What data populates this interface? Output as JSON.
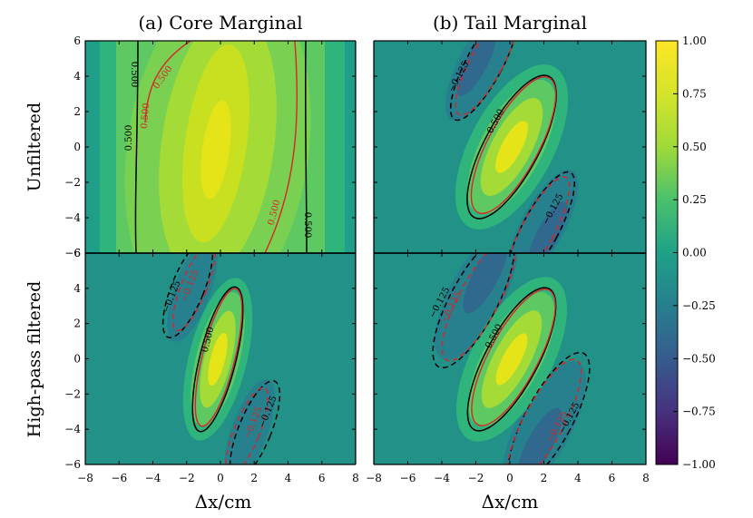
{
  "chart_data": {
    "type": "heatmap",
    "subtype": "filled contour grid (2x2) with contour lines",
    "columns": [
      {
        "key": "core",
        "title": "(a) Core Marginal"
      },
      {
        "key": "tail",
        "title": "(b) Tail Marginal"
      }
    ],
    "rows": [
      {
        "key": "unfiltered",
        "label": "Unfiltered"
      },
      {
        "key": "highpass",
        "label": "High-pass filtered"
      }
    ],
    "xlabel": "Δx/cm",
    "xlim": [
      -8,
      8
    ],
    "xticks": [
      "−8",
      "−6",
      "−4",
      "−2",
      "0",
      "2",
      "4",
      "6",
      "8"
    ],
    "ylim": [
      -6,
      6
    ],
    "yticks": [
      "−6",
      "−4",
      "−2",
      "0",
      "2",
      "4",
      "6"
    ],
    "colorbar": {
      "colormap": "viridis",
      "range": [
        -1.0,
        1.0
      ],
      "ticks": [
        "1.00",
        "0.75",
        "0.50",
        "0.25",
        "0.00",
        "−0.25",
        "−0.50",
        "−0.75",
        "−1.00"
      ],
      "levels": 20
    },
    "panels": [
      {
        "column": "core",
        "row": "unfiltered",
        "description": "broad near-vertical positive correlation band centred at x=0",
        "contour_lines": [
          {
            "level": 0.5,
            "color": "black",
            "style": "solid",
            "labels": [
              "0.500",
              "0.500",
              "0.500"
            ]
          },
          {
            "level": 0.5,
            "color": "red",
            "style": "solid",
            "labels": [
              "0.500",
              "0.500",
              "0.500"
            ]
          }
        ]
      },
      {
        "column": "tail",
        "row": "unfiltered",
        "description": "tilted positive ellipse flanked by negative lobes",
        "contour_lines": [
          {
            "level": 0.5,
            "color": "black",
            "style": "solid",
            "labels": [
              "0.500"
            ]
          },
          {
            "level": 0.5,
            "color": "red",
            "style": "solid",
            "labels": []
          },
          {
            "level": -0.125,
            "color": "black",
            "style": "dashed",
            "labels": [
              "−0.125",
              "−0.125"
            ]
          },
          {
            "level": -0.125,
            "color": "red",
            "style": "dashed",
            "labels": []
          }
        ]
      },
      {
        "column": "core",
        "row": "highpass",
        "description": "narrow tilted positive ellipse flanked by weak negative lobes",
        "contour_lines": [
          {
            "level": 0.5,
            "color": "black",
            "style": "solid",
            "labels": [
              "0.500"
            ]
          },
          {
            "level": 0.5,
            "color": "red",
            "style": "solid",
            "labels": []
          },
          {
            "level": -0.125,
            "color": "black",
            "style": "dashed",
            "labels": [
              "−0.125",
              "−0.125"
            ]
          },
          {
            "level": -0.125,
            "color": "red",
            "style": "dashed",
            "labels": [
              "−0.125",
              "−0.125"
            ]
          }
        ]
      },
      {
        "column": "tail",
        "row": "highpass",
        "description": "tilted positive ellipse flanked by negative lobes",
        "contour_lines": [
          {
            "level": 0.5,
            "color": "black",
            "style": "solid",
            "labels": [
              "0.500"
            ]
          },
          {
            "level": 0.5,
            "color": "red",
            "style": "solid",
            "labels": []
          },
          {
            "level": -0.125,
            "color": "black",
            "style": "dashed",
            "labels": [
              "−0.125",
              "−0.125"
            ]
          },
          {
            "level": -0.125,
            "color": "red",
            "style": "dashed",
            "labels": [
              "−0.125",
              "−0.125"
            ]
          }
        ]
      }
    ]
  }
}
